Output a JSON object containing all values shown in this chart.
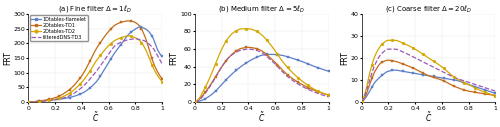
{
  "panels": [
    {
      "label": "(a) Fine filter $\\Delta = 1\\ell_D$",
      "ylim": [
        0,
        300
      ],
      "yticks": [
        0,
        50,
        100,
        150,
        200,
        250,
        300
      ],
      "show_legend": true,
      "curves": [
        {
          "color": "#5b7ec9",
          "ls": "-",
          "marker": "s",
          "label": "1Dtables-flamelet",
          "pts_x": [
            0.0,
            0.05,
            0.1,
            0.2,
            0.3,
            0.4,
            0.5,
            0.6,
            0.65,
            0.7,
            0.75,
            0.8,
            0.83,
            0.87,
            0.9,
            0.93,
            0.97,
            1.0
          ],
          "pts_y": [
            0,
            2,
            4,
            8,
            15,
            30,
            65,
            135,
            170,
            200,
            230,
            248,
            255,
            250,
            240,
            220,
            175,
            155
          ]
        },
        {
          "color": "#c46b1a",
          "ls": "-",
          "marker": "s",
          "label": "2Dtables-TD1",
          "pts_x": [
            0.0,
            0.05,
            0.1,
            0.2,
            0.3,
            0.4,
            0.45,
            0.5,
            0.55,
            0.6,
            0.65,
            0.7,
            0.75,
            0.78,
            0.83,
            0.87,
            0.9,
            0.93,
            0.97,
            1.0
          ],
          "pts_y": [
            0,
            2,
            5,
            15,
            40,
            90,
            130,
            175,
            210,
            240,
            262,
            272,
            276,
            274,
            260,
            225,
            185,
            140,
            100,
            80
          ]
        },
        {
          "color": "#d4a800",
          "ls": "-",
          "marker": "o",
          "label": "2Dtables-TD2",
          "pts_x": [
            0.0,
            0.05,
            0.1,
            0.2,
            0.3,
            0.4,
            0.45,
            0.5,
            0.55,
            0.6,
            0.65,
            0.7,
            0.75,
            0.78,
            0.83,
            0.87,
            0.9,
            0.93,
            0.97,
            1.0
          ],
          "pts_y": [
            0,
            1,
            3,
            10,
            28,
            68,
            98,
            135,
            165,
            192,
            210,
            220,
            225,
            222,
            210,
            185,
            155,
            120,
            88,
            70
          ]
        },
        {
          "color": "#9b59b6",
          "ls": "--",
          "marker": null,
          "label": "filteredDNS-TD3",
          "pts_x": [
            0.0,
            0.05,
            0.1,
            0.2,
            0.3,
            0.4,
            0.5,
            0.6,
            0.65,
            0.7,
            0.75,
            0.8,
            0.83,
            0.87,
            0.9,
            0.93,
            0.97,
            1.0
          ],
          "pts_y": [
            0,
            1,
            3,
            8,
            20,
            50,
            100,
            163,
            192,
            205,
            212,
            215,
            213,
            208,
            198,
            185,
            155,
            130
          ]
        }
      ]
    },
    {
      "label": "(b) Medium filter $\\Delta = 5\\ell_D$",
      "ylim": [
        0,
        100
      ],
      "yticks": [
        0,
        20,
        40,
        60,
        80,
        100
      ],
      "show_legend": false,
      "curves": [
        {
          "color": "#5b7ec9",
          "ls": "-",
          "marker": "s",
          "label": "1Dtables-flamelet",
          "pts_x": [
            0.0,
            0.05,
            0.1,
            0.15,
            0.2,
            0.25,
            0.3,
            0.35,
            0.4,
            0.45,
            0.5,
            0.55,
            0.6,
            0.65,
            0.7,
            0.8,
            0.9,
            1.0
          ],
          "pts_y": [
            0,
            2,
            6,
            12,
            20,
            28,
            35,
            41,
            46,
            50,
            53,
            54,
            54,
            53,
            51,
            46,
            40,
            35
          ]
        },
        {
          "color": "#c46b1a",
          "ls": "-",
          "marker": "s",
          "label": "2Dtables-TD1",
          "pts_x": [
            0.0,
            0.03,
            0.06,
            0.1,
            0.15,
            0.2,
            0.25,
            0.3,
            0.35,
            0.4,
            0.45,
            0.5,
            0.55,
            0.6,
            0.65,
            0.7,
            0.8,
            0.9,
            1.0
          ],
          "pts_y": [
            0,
            3,
            8,
            16,
            28,
            40,
            50,
            57,
            61,
            62,
            61,
            58,
            52,
            45,
            37,
            30,
            20,
            13,
            8
          ]
        },
        {
          "color": "#d4a800",
          "ls": "-",
          "marker": "o",
          "label": "2Dtables-TD2",
          "pts_x": [
            0.0,
            0.03,
            0.06,
            0.1,
            0.15,
            0.2,
            0.25,
            0.3,
            0.35,
            0.4,
            0.45,
            0.5,
            0.55,
            0.6,
            0.65,
            0.7,
            0.8,
            0.9,
            1.0
          ],
          "pts_y": [
            0,
            4,
            12,
            24,
            42,
            60,
            73,
            80,
            83,
            83,
            81,
            76,
            68,
            58,
            47,
            38,
            24,
            14,
            8
          ]
        },
        {
          "color": "#9b59b6",
          "ls": "--",
          "marker": null,
          "label": "filteredDNS-TD3",
          "pts_x": [
            0.0,
            0.03,
            0.06,
            0.1,
            0.15,
            0.2,
            0.25,
            0.3,
            0.35,
            0.4,
            0.45,
            0.5,
            0.55,
            0.6,
            0.65,
            0.7,
            0.8,
            0.9,
            1.0
          ],
          "pts_y": [
            0,
            2,
            7,
            15,
            27,
            40,
            50,
            56,
            59,
            60,
            59,
            56,
            50,
            43,
            35,
            28,
            18,
            11,
            6
          ]
        }
      ]
    },
    {
      "label": "(c) Coarse filter $\\Delta = 20\\ell_D$",
      "ylim": [
        0,
        40
      ],
      "yticks": [
        0,
        10,
        20,
        30,
        40
      ],
      "show_legend": false,
      "curves": [
        {
          "color": "#5b7ec9",
          "ls": "-",
          "marker": "s",
          "label": "1Dtables-flamelet",
          "pts_x": [
            0.0,
            0.03,
            0.06,
            0.1,
            0.15,
            0.2,
            0.25,
            0.3,
            0.4,
            0.5,
            0.6,
            0.7,
            0.8,
            0.9,
            1.0
          ],
          "pts_y": [
            0,
            2,
            5,
            9,
            12,
            14,
            14.5,
            14,
            13,
            12,
            11,
            10,
            8,
            6,
            4
          ]
        },
        {
          "color": "#c46b1a",
          "ls": "-",
          "marker": "s",
          "label": "2Dtables-TD1",
          "pts_x": [
            0.0,
            0.03,
            0.06,
            0.1,
            0.15,
            0.2,
            0.25,
            0.3,
            0.4,
            0.5,
            0.6,
            0.7,
            0.8,
            0.9,
            1.0
          ],
          "pts_y": [
            0,
            3,
            8,
            14,
            18,
            19,
            18.5,
            17.5,
            15,
            12,
            10,
            7,
            5,
            4,
            3
          ]
        },
        {
          "color": "#d4a800",
          "ls": "-",
          "marker": "o",
          "label": "2Dtables-TD2",
          "pts_x": [
            0.0,
            0.03,
            0.06,
            0.1,
            0.15,
            0.2,
            0.25,
            0.3,
            0.4,
            0.5,
            0.6,
            0.7,
            0.8,
            0.9,
            1.0
          ],
          "pts_y": [
            0,
            5,
            13,
            21,
            26,
            28,
            28,
            27,
            24,
            20,
            16,
            11,
            8,
            5,
            3
          ]
        },
        {
          "color": "#9b59b6",
          "ls": "--",
          "marker": null,
          "label": "filteredDNS-TD3",
          "pts_x": [
            0.0,
            0.03,
            0.06,
            0.1,
            0.15,
            0.2,
            0.25,
            0.3,
            0.4,
            0.5,
            0.6,
            0.7,
            0.8,
            0.9,
            1.0
          ],
          "pts_y": [
            0,
            4,
            10,
            17,
            22,
            24,
            24,
            23,
            20,
            17,
            14,
            11,
            9,
            7,
            5
          ]
        }
      ]
    }
  ],
  "legend_labels": [
    "1Dtables-flamelet",
    "2Dtables-TD1",
    "2Dtables-TD2",
    "filteredDNS-TD3"
  ],
  "legend_colors": [
    "#5b7ec9",
    "#c46b1a",
    "#d4a800",
    "#9b59b6"
  ],
  "legend_ls": [
    "-",
    "-",
    "-",
    "--"
  ],
  "legend_markers": [
    "s",
    "s",
    "o",
    null
  ],
  "ylabel": "FRT",
  "xlabel": "$\\tilde{C}$",
  "figsize": [
    5.0,
    1.27
  ],
  "dpi": 100
}
